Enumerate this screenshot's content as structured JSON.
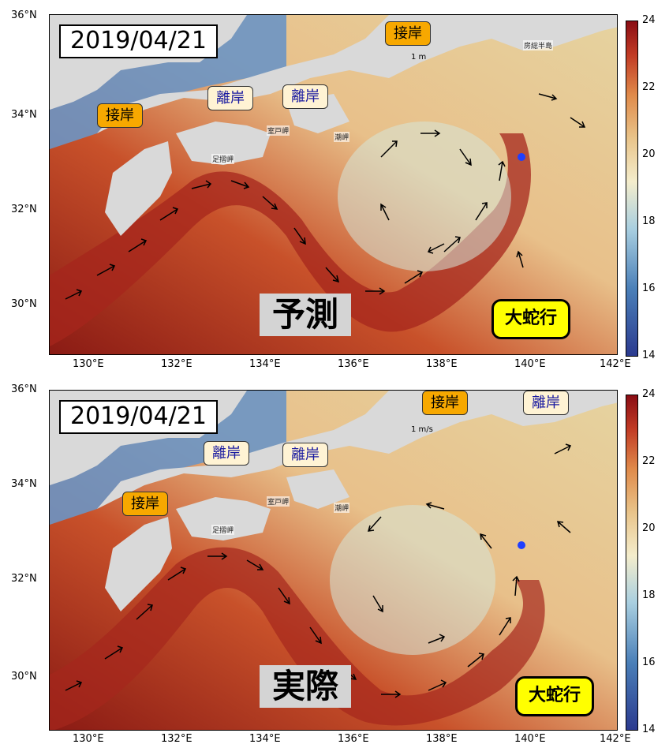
{
  "panels": [
    {
      "id": "forecast",
      "date": "2019/04/21",
      "label": "予測",
      "callouts": {
        "contact_west": "接岸",
        "offshore_1": "離岸",
        "offshore_2": "離岸",
        "contact_east": "接岸",
        "meander": "大蛇行"
      },
      "places": {
        "ashizuri": "足摺岬",
        "muroto": "室戸岬",
        "shionomisaki": "潮岬",
        "boso": "房総半島"
      },
      "scale": "1 m"
    },
    {
      "id": "actual",
      "date": "2019/04/21",
      "label": "実際",
      "callouts": {
        "contact_west": "接岸",
        "offshore_1": "離岸",
        "offshore_2": "離岸",
        "contact_east": "接岸",
        "offshore_3": "離岸",
        "meander": "大蛇行"
      },
      "places": {
        "ashizuri": "足摺岬",
        "muroto": "室戸岬",
        "shionomisaki": "潮岬"
      },
      "scale": "1 m/s"
    }
  ],
  "axes": {
    "lon_ticks": [
      "130°E",
      "132°E",
      "134°E",
      "136°E",
      "138°E",
      "140°E",
      "142°E"
    ],
    "lat_ticks": [
      "36°N",
      "34°N",
      "32°N",
      "30°N"
    ]
  },
  "colorbar": {
    "ticks": [
      "24",
      "22",
      "20",
      "18",
      "16",
      "14"
    ],
    "min": 14,
    "max": 24
  },
  "colors": {
    "land": "#d9d9d9",
    "warm": "#c13a24",
    "cold": "#4a7fb8",
    "marker": "#1f3fff"
  }
}
